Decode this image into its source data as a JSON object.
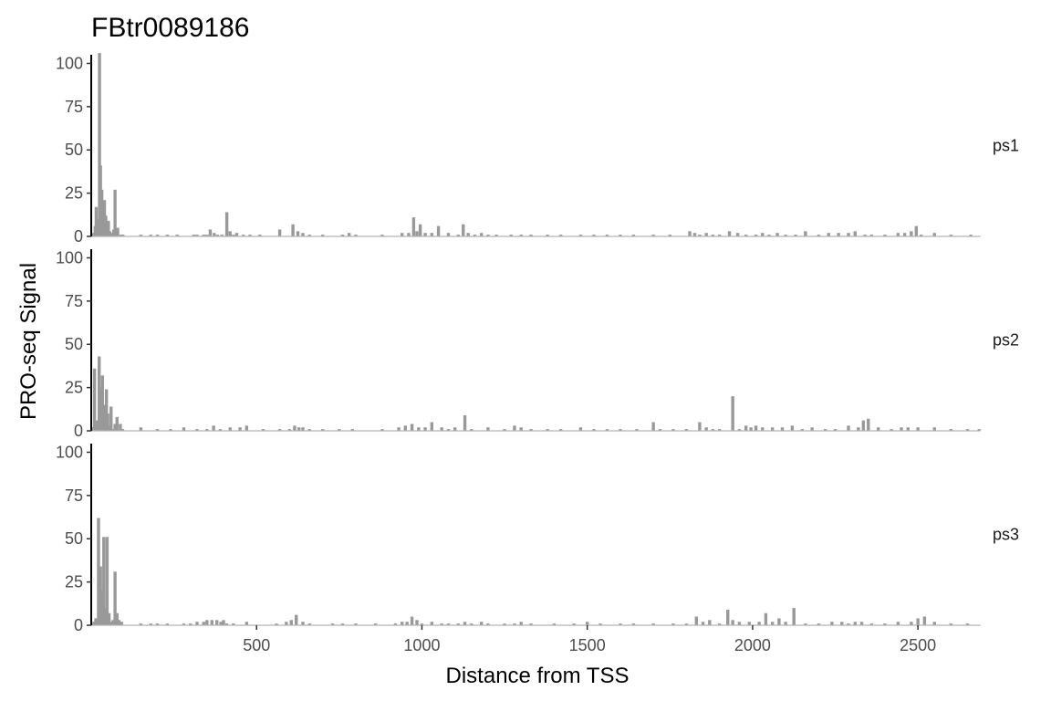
{
  "chart_data": {
    "type": "bar",
    "title": "FBtr0089186",
    "xlabel": "Distance from TSS",
    "ylabel": "PRO-seq Signal",
    "xlim": [
      0,
      2690
    ],
    "ylim": [
      0,
      105
    ],
    "x_ticks": [
      500,
      1000,
      1500,
      2000,
      2500
    ],
    "y_ticks": [
      0,
      25,
      50,
      75,
      100
    ],
    "grid": false,
    "bar_color": "#999999",
    "axis_color": "#000000",
    "facets": [
      {
        "label": "ps1",
        "x": [
          2,
          5,
          12,
          15,
          20,
          25,
          28,
          32,
          36,
          40,
          44,
          48,
          52,
          56,
          62,
          68,
          72,
          80,
          90,
          96,
          150,
          180,
          200,
          230,
          260,
          310,
          320,
          340,
          350,
          360,
          372,
          382,
          395,
          410,
          420,
          430,
          440,
          460,
          480,
          510,
          570,
          610,
          625,
          640,
          660,
          700,
          760,
          780,
          800,
          880,
          940,
          960,
          975,
          985,
          995,
          1010,
          1030,
          1050,
          1080,
          1110,
          1125,
          1140,
          1160,
          1180,
          1200,
          1225,
          1270,
          1300,
          1330,
          1380,
          1420,
          1480,
          1520,
          1560,
          1600,
          1640,
          1700,
          1750,
          1810,
          1825,
          1840,
          1860,
          1880,
          1900,
          1930,
          1955,
          1980,
          2010,
          2030,
          2050,
          2075,
          2100,
          2130,
          2160,
          2200,
          2230,
          2260,
          2290,
          2310,
          2340,
          2360,
          2400,
          2440,
          2460,
          2480,
          2495,
          2510,
          2550,
          2600,
          2660
        ],
        "values": [
          1,
          2,
          6,
          17,
          10,
          106,
          41,
          27,
          8,
          21,
          12,
          6,
          9,
          3,
          2,
          4,
          27,
          5,
          1,
          1,
          1,
          1,
          1,
          1,
          1,
          1,
          1,
          1,
          1,
          4,
          2,
          1,
          1,
          14,
          3,
          1,
          2,
          1,
          1,
          1,
          4,
          7,
          3,
          2,
          1,
          1,
          1,
          2,
          1,
          1,
          2,
          2,
          11,
          3,
          7,
          2,
          2,
          6,
          2,
          1,
          7,
          2,
          1,
          2,
          1,
          1,
          1,
          1,
          1,
          1,
          1,
          1,
          1,
          1,
          1,
          1,
          1,
          1,
          3,
          2,
          1,
          2,
          1,
          1,
          3,
          2,
          1,
          1,
          2,
          1,
          2,
          1,
          1,
          3,
          1,
          2,
          2,
          2,
          3,
          1,
          1,
          1,
          2,
          2,
          3,
          6,
          1,
          2,
          1,
          1
        ]
      },
      {
        "label": "ps2",
        "x": [
          2,
          10,
          18,
          24,
          30,
          34,
          38,
          42,
          46,
          50,
          55,
          60,
          66,
          72,
          78,
          88,
          95,
          150,
          200,
          240,
          280,
          320,
          350,
          370,
          390,
          420,
          450,
          470,
          520,
          570,
          600,
          615,
          628,
          640,
          660,
          700,
          750,
          790,
          880,
          930,
          950,
          970,
          990,
          1010,
          1030,
          1060,
          1080,
          1100,
          1130,
          1150,
          1200,
          1250,
          1280,
          1300,
          1330,
          1380,
          1420,
          1480,
          1520,
          1560,
          1600,
          1650,
          1700,
          1720,
          1760,
          1800,
          1840,
          1860,
          1880,
          1900,
          1940,
          1960,
          1980,
          1995,
          2010,
          2030,
          2060,
          2090,
          2120,
          2150,
          2180,
          2220,
          2250,
          2290,
          2320,
          2335,
          2350,
          2380,
          2420,
          2450,
          2470,
          2500,
          2550,
          2600,
          2650,
          2685
        ],
        "values": [
          2,
          36,
          6,
          43,
          25,
          32,
          13,
          15,
          24,
          10,
          3,
          14,
          1,
          4,
          8,
          4,
          1,
          2,
          1,
          1,
          2,
          1,
          1,
          3,
          1,
          2,
          2,
          3,
          1,
          1,
          1,
          3,
          2,
          2,
          1,
          1,
          1,
          1,
          1,
          2,
          3,
          4,
          2,
          2,
          5,
          2,
          1,
          2,
          9,
          1,
          2,
          1,
          3,
          2,
          1,
          1,
          1,
          2,
          1,
          1,
          1,
          1,
          5,
          1,
          1,
          1,
          5,
          2,
          1,
          1,
          20,
          1,
          3,
          2,
          3,
          2,
          2,
          2,
          3,
          1,
          2,
          1,
          1,
          3,
          2,
          6,
          7,
          2,
          1,
          2,
          2,
          2,
          2,
          1,
          1,
          1
        ]
      },
      {
        "label": "ps3",
        "x": [
          3,
          8,
          14,
          22,
          28,
          33,
          38,
          42,
          48,
          54,
          60,
          66,
          72,
          78,
          84,
          92,
          150,
          180,
          200,
          230,
          280,
          300,
          320,
          340,
          350,
          365,
          380,
          392,
          400,
          410,
          430,
          470,
          560,
          590,
          605,
          620,
          640,
          660,
          730,
          760,
          800,
          860,
          920,
          940,
          955,
          970,
          985,
          1000,
          1030,
          1060,
          1080,
          1110,
          1130,
          1150,
          1180,
          1200,
          1250,
          1280,
          1300,
          1330,
          1400,
          1460,
          1500,
          1540,
          1600,
          1640,
          1700,
          1760,
          1800,
          1830,
          1850,
          1870,
          1900,
          1925,
          1940,
          1960,
          1990,
          2020,
          2040,
          2060,
          2080,
          2100,
          2125,
          2160,
          2200,
          2240,
          2270,
          2290,
          2310,
          2330,
          2360,
          2400,
          2440,
          2480,
          2500,
          2520,
          2550,
          2600,
          2650
        ],
        "values": [
          1,
          2,
          4,
          62,
          34,
          20,
          51,
          10,
          51,
          7,
          2,
          3,
          31,
          7,
          3,
          2,
          1,
          1,
          1,
          1,
          1,
          1,
          2,
          2,
          3,
          3,
          3,
          2,
          3,
          1,
          1,
          2,
          1,
          2,
          3,
          6,
          2,
          1,
          1,
          1,
          1,
          1,
          1,
          2,
          2,
          5,
          3,
          1,
          2,
          1,
          1,
          1,
          2,
          1,
          2,
          1,
          1,
          1,
          2,
          1,
          1,
          1,
          2,
          1,
          1,
          1,
          1,
          1,
          1,
          5,
          2,
          3,
          1,
          9,
          3,
          2,
          2,
          2,
          7,
          2,
          4,
          2,
          10,
          1,
          1,
          2,
          2,
          1,
          2,
          2,
          1,
          1,
          2,
          2,
          4,
          5,
          2,
          1,
          1
        ]
      }
    ]
  }
}
